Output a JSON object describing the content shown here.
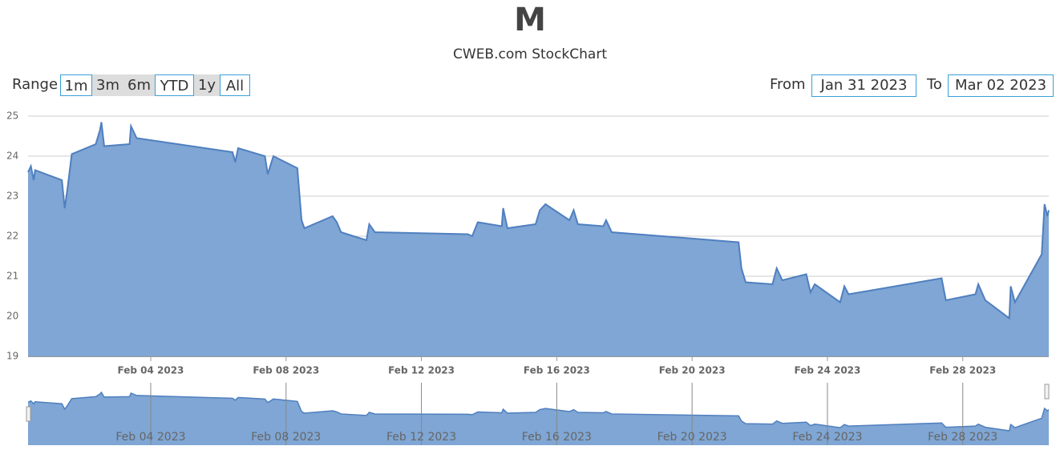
{
  "chart_data": {
    "type": "area",
    "title": "M",
    "subtitle": "CWEB.com StockChart",
    "range_selector": {
      "label": "Range",
      "buttons": [
        "1m",
        "3m",
        "6m",
        "YTD",
        "1y",
        "All"
      ]
    },
    "date_range": {
      "from_label": "From",
      "from": "Jan 31 2023",
      "to_label": "To",
      "to": "Mar 02 2023"
    },
    "x": [
      "2023-01-31T09:00",
      "2023-01-31T11:00",
      "2023-01-31T13:00",
      "2023-01-31T14:00",
      "2023-02-01T09:00",
      "2023-02-01T11:00",
      "2023-02-01T13:00",
      "2023-02-01T16:00",
      "2023-02-02T09:00",
      "2023-02-02T12:00",
      "2023-02-02T13:00",
      "2023-02-02T15:00",
      "2023-02-03T09:00",
      "2023-02-03T10:00",
      "2023-02-03T14:00",
      "2023-02-06T10:00",
      "2023-02-06T12:00",
      "2023-02-06T14:00",
      "2023-02-07T09:00",
      "2023-02-07T11:00",
      "2023-02-07T15:00",
      "2023-02-08T08:00",
      "2023-02-08T11:00",
      "2023-02-08T13:00",
      "2023-02-09T09:00",
      "2023-02-09T12:00",
      "2023-02-09T15:00",
      "2023-02-10T09:00",
      "2023-02-10T11:00",
      "2023-02-10T15:00",
      "2023-02-13T09:00",
      "2023-02-13T12:00",
      "2023-02-13T16:00",
      "2023-02-14T09:00",
      "2023-02-14T10:00",
      "2023-02-14T13:00",
      "2023-02-15T09:00",
      "2023-02-15T12:00",
      "2023-02-15T16:00",
      "2023-02-16T09:00",
      "2023-02-16T12:00",
      "2023-02-16T15:00",
      "2023-02-17T09:00",
      "2023-02-17T11:00",
      "2023-02-17T15:00",
      "2023-02-21T09:00",
      "2023-02-21T11:00",
      "2023-02-21T14:00",
      "2023-02-22T09:00",
      "2023-02-22T12:00",
      "2023-02-22T16:00",
      "2023-02-23T09:00",
      "2023-02-23T12:00",
      "2023-02-23T15:00",
      "2023-02-24T09:00",
      "2023-02-24T12:00",
      "2023-02-24T15:00",
      "2023-02-27T09:00",
      "2023-02-27T12:00",
      "2023-02-28T09:00",
      "2023-02-28T11:00",
      "2023-02-28T16:00",
      "2023-03-01T09:00",
      "2023-03-01T10:00",
      "2023-03-01T13:00",
      "2023-03-02T08:00",
      "2023-03-02T10:00",
      "2023-03-02T12:00",
      "2023-03-02T13:00"
    ],
    "values": [
      23.6,
      23.75,
      23.4,
      23.65,
      23.4,
      22.7,
      23.2,
      24.05,
      24.3,
      24.65,
      24.85,
      24.25,
      24.3,
      24.75,
      24.45,
      24.1,
      23.85,
      24.2,
      24.0,
      23.55,
      24.0,
      23.7,
      22.4,
      22.2,
      22.5,
      22.35,
      22.1,
      21.9,
      22.3,
      22.1,
      22.05,
      22.0,
      22.35,
      22.25,
      22.7,
      22.2,
      22.3,
      22.65,
      22.8,
      22.4,
      22.65,
      22.3,
      22.25,
      22.4,
      22.1,
      21.85,
      21.2,
      20.85,
      20.8,
      21.2,
      20.9,
      21.05,
      20.6,
      20.8,
      20.35,
      20.75,
      20.55,
      20.95,
      20.4,
      20.55,
      20.8,
      20.4,
      19.95,
      20.75,
      20.35,
      21.55,
      22.8,
      22.5,
      22.65
    ],
    "color": "#7fa6d4",
    "line_color": "#4f7fbf",
    "xlim": [
      "2023-01-31T09:00",
      "2023-03-02T13:00"
    ],
    "ylim": [
      19,
      25
    ],
    "yticks": [
      19,
      20,
      21,
      22,
      23,
      24,
      25
    ],
    "xticks": [
      {
        "value": "2023-02-04T00:00",
        "label": "Feb 04 2023"
      },
      {
        "value": "2023-02-08T00:00",
        "label": "Feb 08 2023"
      },
      {
        "value": "2023-02-12T00:00",
        "label": "Feb 12 2023"
      },
      {
        "value": "2023-02-16T00:00",
        "label": "Feb 16 2023"
      },
      {
        "value": "2023-02-20T00:00",
        "label": "Feb 20 2023"
      },
      {
        "value": "2023-02-24T00:00",
        "label": "Feb 24 2023"
      },
      {
        "value": "2023-02-28T00:00",
        "label": "Feb 28 2023"
      }
    ],
    "grid": true
  }
}
